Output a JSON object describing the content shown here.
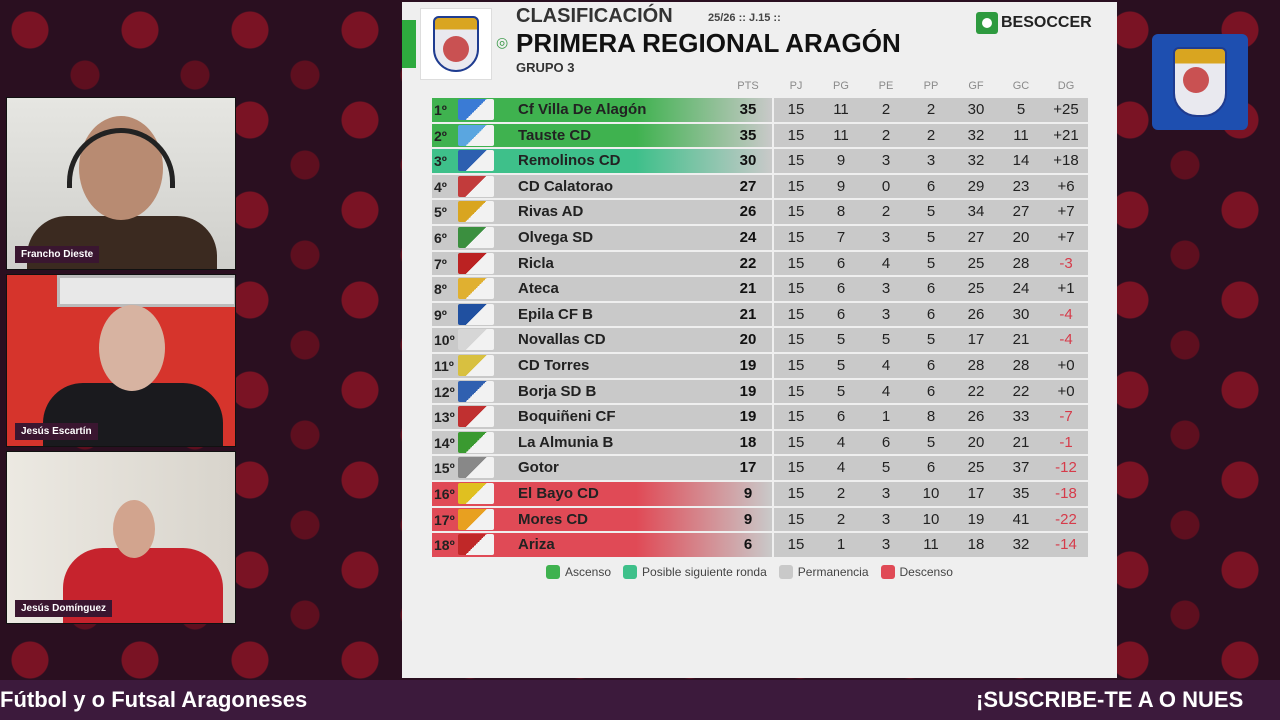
{
  "table": {
    "heading": "CLASIFICACIÓN",
    "season": "25/26 :: J.15 ::",
    "league": "PRIMERA REGIONAL ARAGÓN",
    "group": "GRUPO 3",
    "brand": "BESOCCER",
    "columns": [
      "PTS",
      "PJ",
      "PG",
      "PE",
      "PP",
      "GF",
      "GC",
      "DG"
    ],
    "rows": [
      {
        "pos": "1º",
        "team": "Cf Villa De Alagón",
        "pts": "35",
        "pj": "15",
        "pg": "11",
        "pe": "2",
        "pp": "2",
        "gf": "30",
        "gc": "5",
        "dg": "+25",
        "zone": "ascenso"
      },
      {
        "pos": "2º",
        "team": "Tauste CD",
        "pts": "35",
        "pj": "15",
        "pg": "11",
        "pe": "2",
        "pp": "2",
        "gf": "32",
        "gc": "11",
        "dg": "+21",
        "zone": "ascenso"
      },
      {
        "pos": "3º",
        "team": "Remolinos CD",
        "pts": "30",
        "pj": "15",
        "pg": "9",
        "pe": "3",
        "pp": "3",
        "gf": "32",
        "gc": "14",
        "dg": "+18",
        "zone": "ronda"
      },
      {
        "pos": "4º",
        "team": "CD Calatorao",
        "pts": "27",
        "pj": "15",
        "pg": "9",
        "pe": "0",
        "pp": "6",
        "gf": "29",
        "gc": "23",
        "dg": "+6",
        "zone": "perm"
      },
      {
        "pos": "5º",
        "team": "Rivas AD",
        "pts": "26",
        "pj": "15",
        "pg": "8",
        "pe": "2",
        "pp": "5",
        "gf": "34",
        "gc": "27",
        "dg": "+7",
        "zone": "perm"
      },
      {
        "pos": "6º",
        "team": "Olvega SD",
        "pts": "24",
        "pj": "15",
        "pg": "7",
        "pe": "3",
        "pp": "5",
        "gf": "27",
        "gc": "20",
        "dg": "+7",
        "zone": "perm"
      },
      {
        "pos": "7º",
        "team": "Ricla",
        "pts": "22",
        "pj": "15",
        "pg": "6",
        "pe": "4",
        "pp": "5",
        "gf": "25",
        "gc": "28",
        "dg": "-3",
        "zone": "perm"
      },
      {
        "pos": "8º",
        "team": "Ateca",
        "pts": "21",
        "pj": "15",
        "pg": "6",
        "pe": "3",
        "pp": "6",
        "gf": "25",
        "gc": "24",
        "dg": "+1",
        "zone": "perm"
      },
      {
        "pos": "9º",
        "team": "Epila CF B",
        "pts": "21",
        "pj": "15",
        "pg": "6",
        "pe": "3",
        "pp": "6",
        "gf": "26",
        "gc": "30",
        "dg": "-4",
        "zone": "perm"
      },
      {
        "pos": "10º",
        "team": "Novallas CD",
        "pts": "20",
        "pj": "15",
        "pg": "5",
        "pe": "5",
        "pp": "5",
        "gf": "17",
        "gc": "21",
        "dg": "-4",
        "zone": "perm"
      },
      {
        "pos": "11º",
        "team": "CD Torres",
        "pts": "19",
        "pj": "15",
        "pg": "5",
        "pe": "4",
        "pp": "6",
        "gf": "28",
        "gc": "28",
        "dg": "+0",
        "zone": "perm"
      },
      {
        "pos": "12º",
        "team": "Borja SD B",
        "pts": "19",
        "pj": "15",
        "pg": "5",
        "pe": "4",
        "pp": "6",
        "gf": "22",
        "gc": "22",
        "dg": "+0",
        "zone": "perm"
      },
      {
        "pos": "13º",
        "team": "Boquiñeni CF",
        "pts": "19",
        "pj": "15",
        "pg": "6",
        "pe": "1",
        "pp": "8",
        "gf": "26",
        "gc": "33",
        "dg": "-7",
        "zone": "perm"
      },
      {
        "pos": "14º",
        "team": "La Almunia B",
        "pts": "18",
        "pj": "15",
        "pg": "4",
        "pe": "6",
        "pp": "5",
        "gf": "20",
        "gc": "21",
        "dg": "-1",
        "zone": "perm"
      },
      {
        "pos": "15º",
        "team": "Gotor",
        "pts": "17",
        "pj": "15",
        "pg": "4",
        "pe": "5",
        "pp": "6",
        "gf": "25",
        "gc": "37",
        "dg": "-12",
        "zone": "perm"
      },
      {
        "pos": "16º",
        "team": "El Bayo CD",
        "pts": "9",
        "pj": "15",
        "pg": "2",
        "pe": "3",
        "pp": "10",
        "gf": "17",
        "gc": "35",
        "dg": "-18",
        "zone": "descenso"
      },
      {
        "pos": "17º",
        "team": "Mores CD",
        "pts": "9",
        "pj": "15",
        "pg": "2",
        "pe": "3",
        "pp": "10",
        "gf": "19",
        "gc": "41",
        "dg": "-22",
        "zone": "descenso"
      },
      {
        "pos": "18º",
        "team": "Ariza",
        "pts": "6",
        "pj": "15",
        "pg": "1",
        "pe": "3",
        "pp": "11",
        "gf": "18",
        "gc": "32",
        "dg": "-14",
        "zone": "descenso"
      }
    ],
    "legend": [
      {
        "label": "Ascenso",
        "color": "#3fb24f"
      },
      {
        "label": "Posible siguiente ronda",
        "color": "#3ec08a"
      },
      {
        "label": "Permanencia",
        "color": "#c9c9c9"
      },
      {
        "label": "Descenso",
        "color": "#e04a56"
      }
    ]
  },
  "cams": [
    {
      "name": "Francho Dieste"
    },
    {
      "name": "Jesús Escartín"
    },
    {
      "name": "Jesús Domínguez"
    }
  ],
  "ticker": {
    "left": "Fútbol y o Futsal Aragoneses",
    "right": "¡SUSCRIBE-TE A O NUES"
  },
  "colors": {
    "ascenso": "#3fb24f",
    "ronda": "#3ec08a",
    "descenso": "#e04a56",
    "perm": "#c9c9c9"
  }
}
